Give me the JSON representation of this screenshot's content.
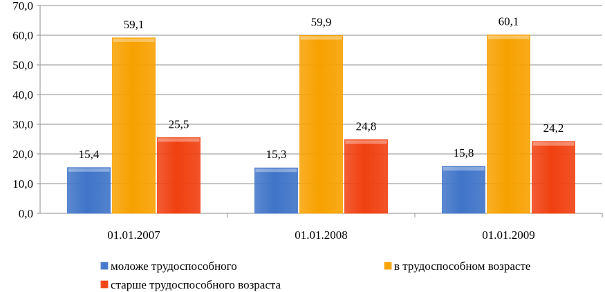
{
  "chart_data": {
    "type": "bar",
    "categories": [
      "01.01.2007",
      "01.01.2008",
      "01.01.2009"
    ],
    "series": [
      {
        "name": "моложе трудоспособного",
        "values": [
          15.4,
          15.3,
          15.8
        ],
        "labels": [
          "15,4",
          "15,3",
          "15,8"
        ],
        "color": "#3f74c8"
      },
      {
        "name": "в трудоспособном возрасте",
        "values": [
          59.1,
          59.9,
          60.1
        ],
        "labels": [
          "59,1",
          "59,9",
          "60,1"
        ],
        "color": "#f7a100"
      },
      {
        "name": "старше трудоспособного возраста",
        "values": [
          25.5,
          24.8,
          24.2
        ],
        "labels": [
          "25,5",
          "24,8",
          "24,2"
        ],
        "color": "#f04010"
      }
    ],
    "ylim": [
      0,
      70
    ],
    "yticks": [
      "0,0",
      "10,0",
      "20,0",
      "30,0",
      "40,0",
      "50,0",
      "60,0",
      "70,0"
    ],
    "grid": true,
    "legend_position": "bottom"
  }
}
